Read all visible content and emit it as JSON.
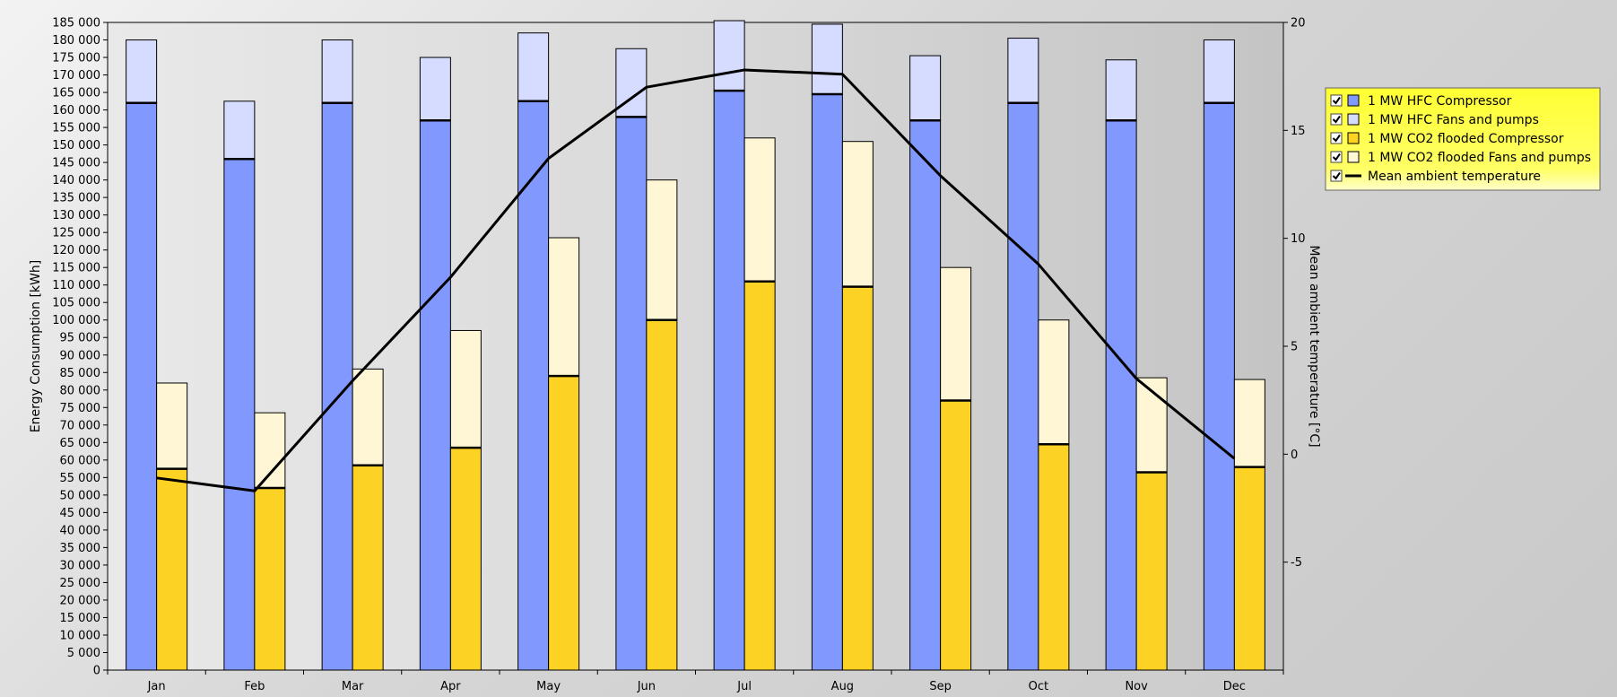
{
  "chart_data": {
    "type": "bar",
    "categories": [
      "Jan",
      "Feb",
      "Mar",
      "Apr",
      "May",
      "Jun",
      "Jul",
      "Aug",
      "Sep",
      "Oct",
      "Nov",
      "Dec"
    ],
    "ylabel": "Energy Consumption [kWh]",
    "y2label": "Mean ambient temperature [°C]",
    "ylim": [
      0,
      185000
    ],
    "y_ticks": [
      0,
      5000,
      10000,
      15000,
      20000,
      25000,
      30000,
      35000,
      40000,
      45000,
      50000,
      55000,
      60000,
      65000,
      70000,
      75000,
      80000,
      85000,
      90000,
      95000,
      100000,
      105000,
      110000,
      115000,
      120000,
      125000,
      130000,
      135000,
      140000,
      145000,
      150000,
      155000,
      160000,
      165000,
      170000,
      175000,
      180000,
      185000
    ],
    "y2lim": [
      -10,
      20
    ],
    "y2_ticks": [
      -5,
      0,
      5,
      10,
      15,
      20
    ],
    "legend_position": "right",
    "stacks": [
      {
        "stack": "HFC",
        "series": [
          {
            "name": "1 MW HFC Compressor",
            "color": "#8199ff",
            "values": [
              162000,
              146000,
              162000,
              157000,
              162500,
              158000,
              165500,
              164500,
              157000,
              162000,
              157000,
              162000
            ]
          },
          {
            "name": "1 MW HFC Fans and pumps",
            "color": "#d5dcff",
            "values": [
              18000,
              16500,
              18000,
              18000,
              19500,
              19500,
              20000,
              20000,
              18500,
              18500,
              17300,
              18000
            ]
          }
        ]
      },
      {
        "stack": "CO2",
        "series": [
          {
            "name": "1 MW CO2 flooded Compressor",
            "color": "#fcd224",
            "values": [
              57500,
              52000,
              58500,
              63500,
              84000,
              100000,
              111000,
              109500,
              77000,
              64500,
              56500,
              58000
            ]
          },
          {
            "name": "1 MW CO2 flooded Fans and pumps",
            "color": "#fef6d5",
            "values": [
              24500,
              21500,
              27500,
              33500,
              39500,
              40000,
              41000,
              41500,
              38000,
              35500,
              27000,
              25000
            ]
          }
        ]
      }
    ],
    "line": {
      "name": "Mean ambient temperature",
      "color": "#000000",
      "axis": "y2",
      "values": [
        -1.1,
        -1.7,
        3.4,
        8.2,
        13.7,
        17.0,
        17.8,
        17.6,
        12.9,
        8.8,
        3.5,
        -0.2
      ]
    }
  },
  "legend": {
    "items": [
      {
        "label": "1 MW HFC Compressor",
        "kind": "box",
        "color": "#8199ff"
      },
      {
        "label": "1 MW HFC Fans and pumps",
        "kind": "box",
        "color": "#d5dcff"
      },
      {
        "label": "1 MW CO2 flooded Compressor",
        "kind": "box",
        "color": "#fcd224"
      },
      {
        "label": "1 MW CO2 flooded Fans and pumps",
        "kind": "box",
        "color": "#fef6d5"
      },
      {
        "label": "Mean ambient temperature",
        "kind": "line",
        "color": "#000000"
      }
    ],
    "background": "#ffff33"
  }
}
